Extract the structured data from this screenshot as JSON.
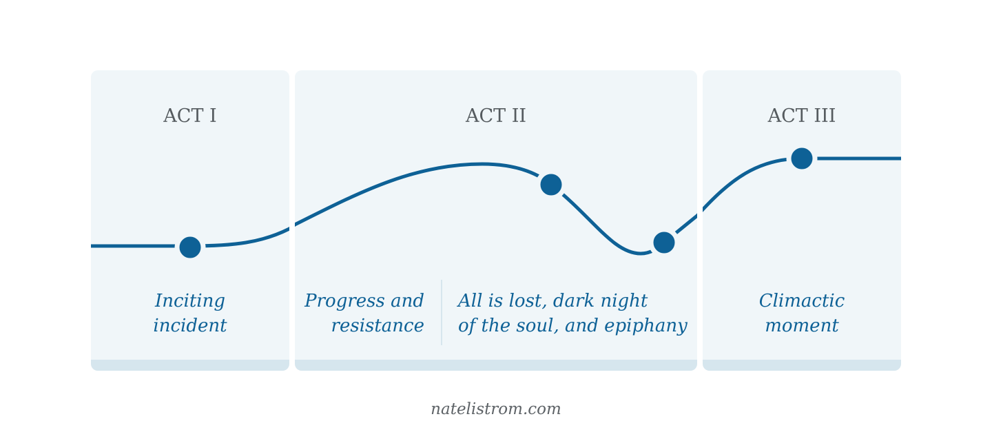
{
  "acts": [
    {
      "title": "ACT I"
    },
    {
      "title": "ACT II"
    },
    {
      "title": "ACT III"
    }
  ],
  "beats": [
    {
      "lines": [
        "Inciting",
        "incident"
      ]
    },
    {
      "lines": [
        "Progress and",
        "resistance"
      ]
    },
    {
      "lines": [
        "All is lost, dark night",
        "of the soul, and epiphany"
      ]
    },
    {
      "lines": [
        "Climactic",
        "moment"
      ]
    }
  ],
  "footer": "natelistrom.com",
  "colors": {
    "accent": "#0e6196",
    "panel": "#f0f6f9",
    "panel_footer": "#d6e6ee",
    "title_text": "#555b5f"
  }
}
